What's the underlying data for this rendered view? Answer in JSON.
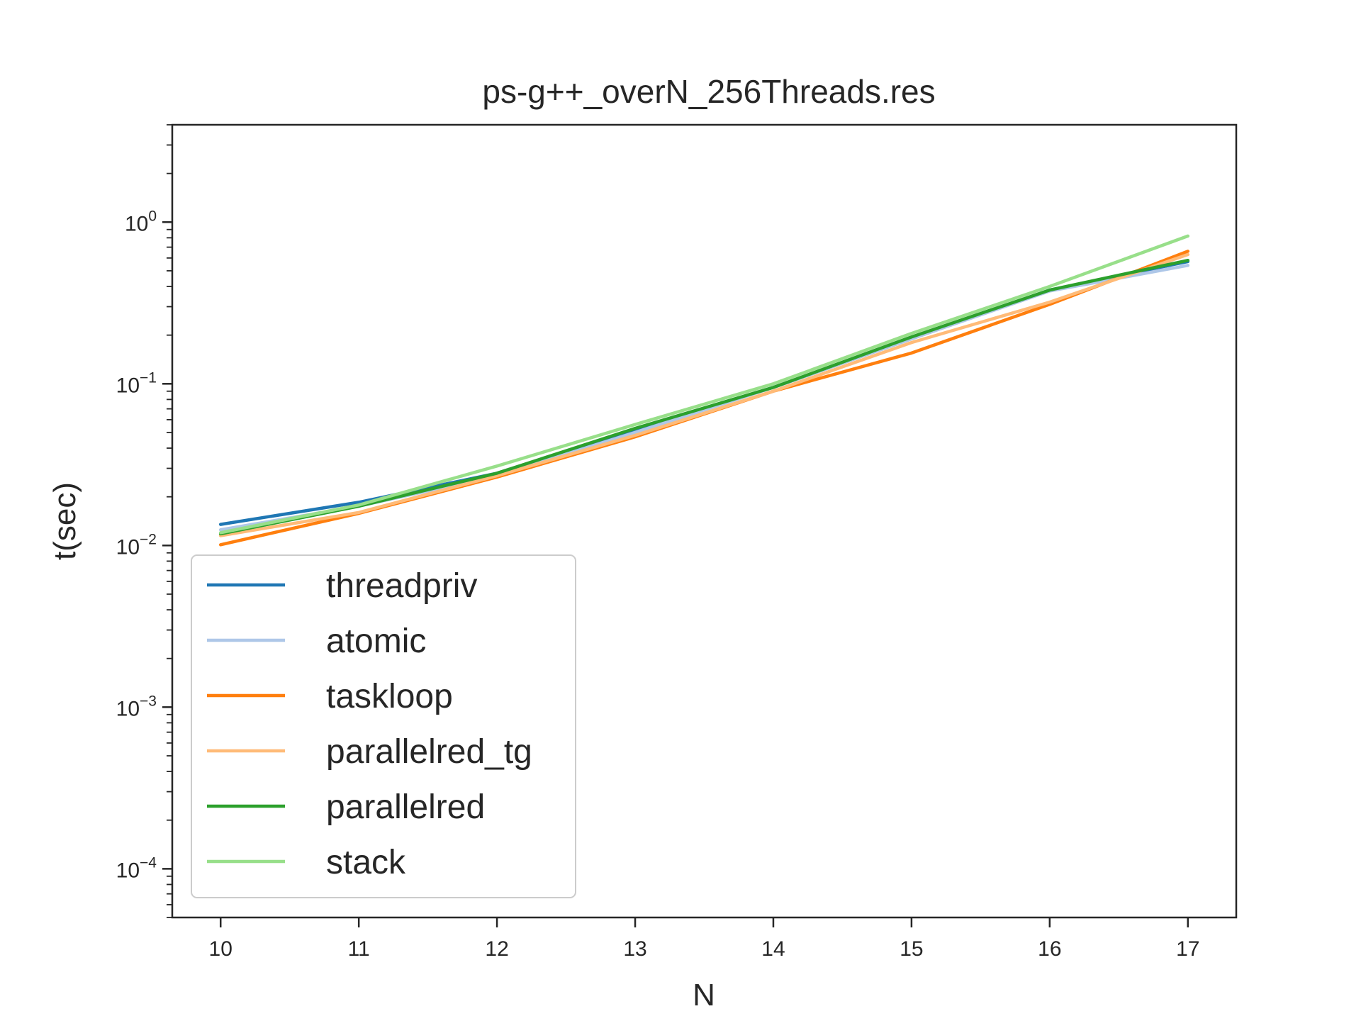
{
  "chart_data": {
    "type": "line",
    "title": "ps-g++_overN_256Threads.res",
    "xlabel": "N",
    "ylabel": "t(sec)",
    "x": [
      10,
      11,
      12,
      13,
      14,
      15,
      16,
      17
    ],
    "xlim": [
      9.65,
      17.35
    ],
    "ylim": [
      5e-05,
      4.0
    ],
    "yscale": "log",
    "x_ticks": [
      "10",
      "11",
      "12",
      "13",
      "14",
      "15",
      "16",
      "17"
    ],
    "y_ticks": [
      {
        "value": 0.0001,
        "base": "10",
        "exp": "−4"
      },
      {
        "value": 0.001,
        "base": "10",
        "exp": "−3"
      },
      {
        "value": 0.01,
        "base": "10",
        "exp": "−2"
      },
      {
        "value": 0.1,
        "base": "10",
        "exp": "−1"
      },
      {
        "value": 1,
        "base": "10",
        "exp": "0"
      }
    ],
    "grid": false,
    "legend_position": "lower-left",
    "series": [
      {
        "name": "threadpriv",
        "color": "#1f77b4",
        "values": [
          0.0135,
          0.0185,
          0.028,
          0.052,
          0.095,
          0.19,
          0.38,
          0.57
        ]
      },
      {
        "name": "atomic",
        "color": "#aec7e8",
        "values": [
          0.0125,
          0.0175,
          0.027,
          0.05,
          0.095,
          0.19,
          0.375,
          0.54
        ]
      },
      {
        "name": "taskloop",
        "color": "#ff7f0e",
        "values": [
          0.0101,
          0.0158,
          0.0265,
          0.047,
          0.09,
          0.155,
          0.31,
          0.66
        ]
      },
      {
        "name": "parallelred_tg",
        "color": "#ffbb78",
        "values": [
          0.0115,
          0.016,
          0.027,
          0.048,
          0.09,
          0.18,
          0.32,
          0.63
        ]
      },
      {
        "name": "parallelred",
        "color": "#2ca02c",
        "values": [
          0.0118,
          0.0175,
          0.028,
          0.053,
          0.095,
          0.195,
          0.38,
          0.58
        ]
      },
      {
        "name": "stack",
        "color": "#98df8a",
        "values": [
          0.012,
          0.0178,
          0.031,
          0.056,
          0.1,
          0.205,
          0.4,
          0.82
        ]
      }
    ]
  }
}
